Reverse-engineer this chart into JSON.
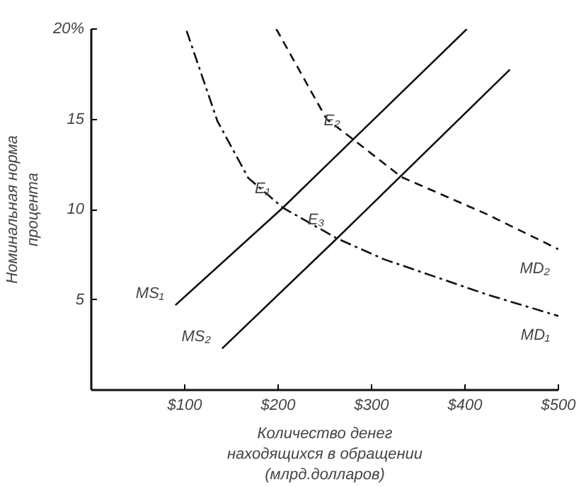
{
  "chart_data": {
    "type": "line",
    "xlabel": "Количество денег\nнаходящихся в обращении\n(млрд.долларов)",
    "ylabel": "Номинальная норма\nпроцента",
    "xlim": [
      0,
      500
    ],
    "ylim": [
      0,
      20
    ],
    "xticks": [
      {
        "value": 100,
        "label": "$100"
      },
      {
        "value": 200,
        "label": "$200"
      },
      {
        "value": 300,
        "label": "$300"
      },
      {
        "value": 400,
        "label": "$400"
      },
      {
        "value": 500,
        "label": "$500"
      }
    ],
    "yticks": [
      5,
      10,
      15,
      {
        "value": 20,
        "label": "20%"
      }
    ],
    "grid": false,
    "legend": false,
    "marker": "none",
    "series": [
      {
        "name": "MS₁",
        "color": "#111111",
        "line_style": "solid",
        "x": [
          90,
          205,
          402
        ],
        "values": [
          4.7,
          10.1,
          20
        ]
      },
      {
        "name": "MS₂",
        "color": "#111111",
        "line_style": "solid",
        "x": [
          140,
          263,
          448
        ],
        "values": [
          2.3,
          8.4,
          17.75
        ]
      },
      {
        "name": "MD₁",
        "color": "#111111",
        "line_style": "dashdot",
        "x": [
          102,
          135,
          168,
          205,
          263,
          313,
          423,
          500
        ],
        "values": [
          19.9,
          14.9,
          11.75,
          10.1,
          8.4,
          7.25,
          5.3,
          4.1
        ]
      },
      {
        "name": "MD₂",
        "color": "#111111",
        "line_style": "dashed",
        "x": [
          198,
          252,
          280,
          332,
          423,
          500
        ],
        "values": [
          20,
          15,
          13.9,
          11.8,
          9.75,
          7.8
        ]
      }
    ],
    "annotations": [
      {
        "text": "E₁",
        "x": 205,
        "y": 10.1
      },
      {
        "text": "E₂",
        "x": 280,
        "y": 13.9
      },
      {
        "text": "E₃",
        "x": 263,
        "y": 8.4
      }
    ]
  }
}
